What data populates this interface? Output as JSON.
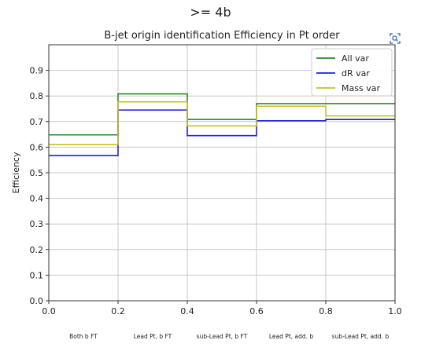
{
  "suptitle": ">= 4b",
  "chart_data": {
    "type": "line",
    "drawstyle": "steps",
    "title": "B-jet origin identification Efficiency in Pt order",
    "xlabel": "",
    "ylabel": "Efficiency",
    "xlim": [
      0.0,
      1.0
    ],
    "ylim": [
      0.0,
      1.0
    ],
    "x_ticks": [
      "0.0",
      "0.2",
      "0.4",
      "0.6",
      "0.8",
      "1.0"
    ],
    "y_ticks": [
      "0.0",
      "0.1",
      "0.2",
      "0.3",
      "0.4",
      "0.5",
      "0.6",
      "0.7",
      "0.8",
      "0.9"
    ],
    "categories": [
      "Both b FT",
      "Lead Pt, b FT",
      "sub-Lead Pt, b FT",
      "Lead Pt, add. b",
      "sub-Lead Pt, add. b"
    ],
    "bin_edges": [
      0.0,
      0.2,
      0.4,
      0.6,
      0.8,
      1.0
    ],
    "grid": true,
    "legend_position": "upper right",
    "series": [
      {
        "name": "All var",
        "color": "#2a8a2a",
        "values": [
          0.648,
          0.808,
          0.708,
          0.77,
          0.77
        ]
      },
      {
        "name": "dR var",
        "color": "#1f1fe0",
        "values": [
          0.567,
          0.745,
          0.645,
          0.703,
          0.708
        ]
      },
      {
        "name": "Mass var",
        "color": "#c8c020",
        "values": [
          0.61,
          0.777,
          0.683,
          0.76,
          0.722
        ]
      }
    ]
  }
}
